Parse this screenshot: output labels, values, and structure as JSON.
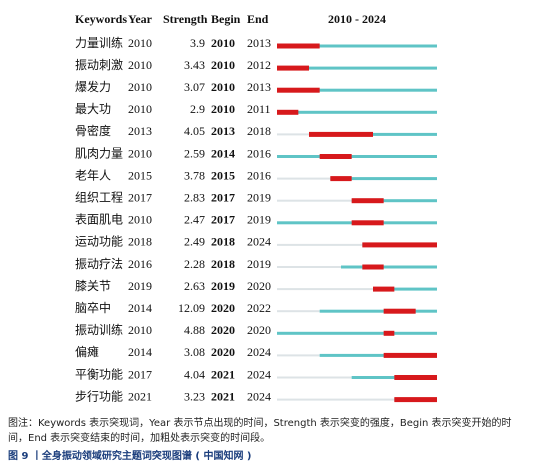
{
  "table": {
    "columns": [
      "Keywords",
      "Year",
      "Strength",
      "Begin",
      "End"
    ],
    "timeline": {
      "label": "2010 - 2024",
      "start": 2010,
      "end": 2024
    },
    "rows": [
      [
        "力量训练",
        2010,
        3.9,
        2010,
        2013
      ],
      [
        "振动刺激",
        2010,
        3.43,
        2010,
        2012
      ],
      [
        "爆发力",
        2010,
        3.07,
        2010,
        2013
      ],
      [
        "最大功",
        2010,
        2.9,
        2010,
        2011
      ],
      [
        "骨密度",
        2013,
        4.05,
        2013,
        2018
      ],
      [
        "肌肉力量",
        2010,
        2.59,
        2014,
        2016
      ],
      [
        "老年人",
        2015,
        3.78,
        2015,
        2016
      ],
      [
        "组织工程",
        2017,
        2.83,
        2017,
        2019
      ],
      [
        "表面肌电",
        2010,
        2.47,
        2017,
        2019
      ],
      [
        "运动功能",
        2018,
        2.49,
        2018,
        2024
      ],
      [
        "振动疗法",
        2016,
        2.28,
        2018,
        2019
      ],
      [
        "膝关节",
        2019,
        2.63,
        2019,
        2020
      ],
      [
        "脑卒中",
        2014,
        12.09,
        2020,
        2022
      ],
      [
        "振动训练",
        2010,
        4.88,
        2020,
        2020
      ],
      [
        "偏瘫",
        2014,
        3.08,
        2020,
        2024
      ],
      [
        "平衡功能",
        2017,
        4.04,
        2021,
        2024
      ],
      [
        "步行功能",
        2021,
        3.23,
        2021,
        2024
      ]
    ]
  },
  "caption": {
    "note": "图注：Keywords 表示突现词，Year 表示节点出现的时间，Strength 表示突变的强度，Begin 表示突变开始的时间，End 表示突变结束的时间，加粗处表示突变的时间段。",
    "title": "图 9 丨全身振动领域研究主题词突现图谱 ( 中国知网 )"
  }
}
